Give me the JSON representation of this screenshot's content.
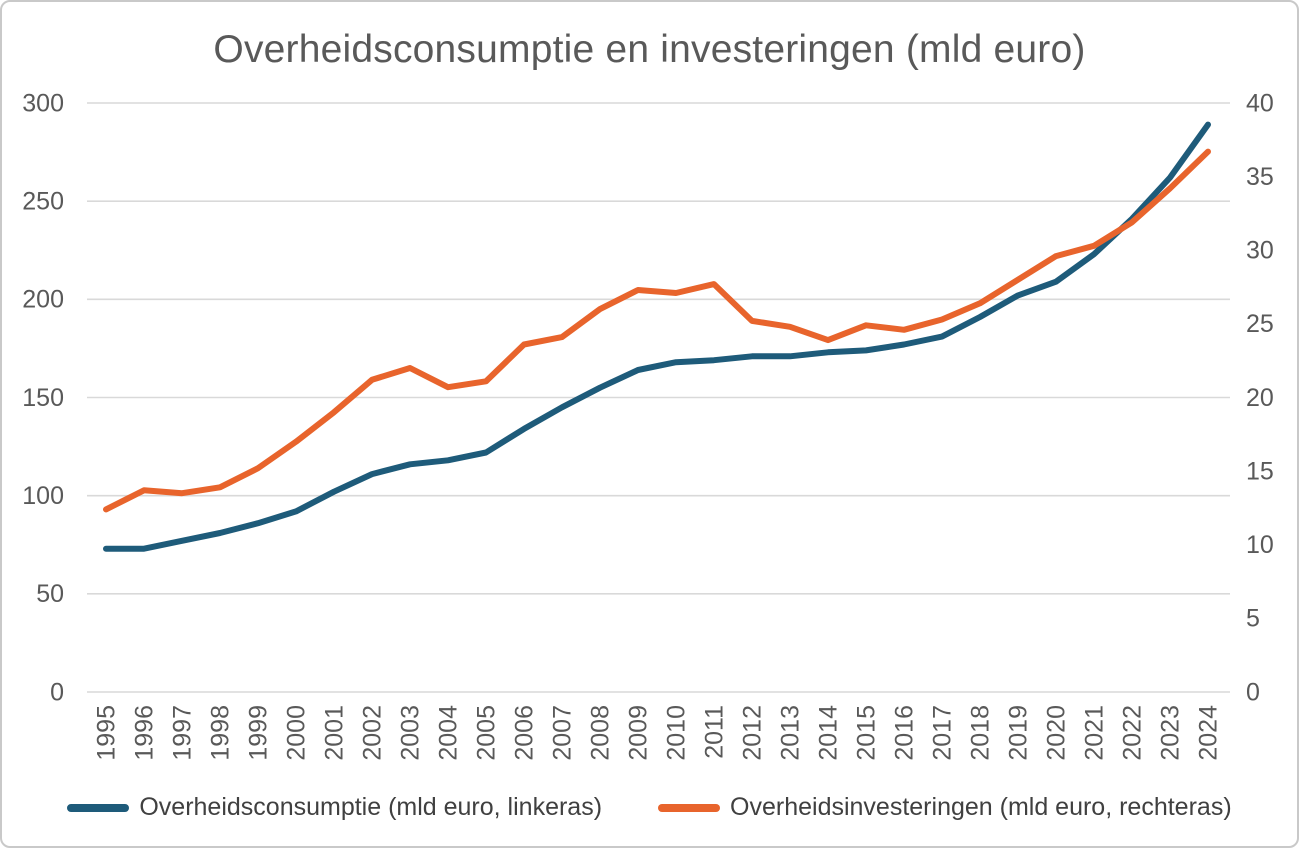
{
  "page": {
    "title": "Overheidsconsumptie en investeringen (mld euro)"
  },
  "chart_data": {
    "type": "line",
    "title": "Overheidsconsumptie en investeringen (mld euro)",
    "categories": [
      "1995",
      "1996",
      "1997",
      "1998",
      "1999",
      "2000",
      "2001",
      "2002",
      "2003",
      "2004",
      "2005",
      "2006",
      "2007",
      "2008",
      "2009",
      "2010",
      "2011",
      "2012",
      "2013",
      "2014",
      "2015",
      "2016",
      "2017",
      "2018",
      "2019",
      "2020",
      "2021",
      "2022",
      "2023",
      "2024"
    ],
    "series": [
      {
        "name": "Overheidsconsumptie (mld euro, linkeras)",
        "axis": "left",
        "color": "#1E5B7A",
        "values": [
          73,
          73,
          77,
          81,
          86,
          92,
          102,
          111,
          116,
          118,
          122,
          134,
          145,
          155,
          164,
          168,
          169,
          171,
          171,
          173,
          174,
          177,
          181,
          191,
          202,
          209,
          223,
          241,
          262,
          289
        ]
      },
      {
        "name": "Overheidsinvesteringen (mld euro, rechteras)",
        "axis": "right",
        "color": "#E8642C",
        "values": [
          12.4,
          13.7,
          13.5,
          13.9,
          15.2,
          17.0,
          19.0,
          21.2,
          22.0,
          20.7,
          21.1,
          23.6,
          24.1,
          26.0,
          27.3,
          27.1,
          27.7,
          25.2,
          24.8,
          23.9,
          24.9,
          24.6,
          25.3,
          26.4,
          28.0,
          29.6,
          30.3,
          31.9,
          34.2,
          36.7
        ]
      }
    ],
    "left_axis": {
      "min": 0,
      "max": 300,
      "step": 50,
      "tick_labels": [
        "0",
        "50",
        "100",
        "150",
        "200",
        "250",
        "300"
      ]
    },
    "right_axis": {
      "min": 0,
      "max": 40,
      "step": 5,
      "tick_labels": [
        "0",
        "5",
        "10",
        "15",
        "20",
        "25",
        "30",
        "35",
        "40"
      ]
    },
    "grid": true,
    "legend_position": "bottom",
    "x_tick_rotation": -90
  },
  "style": {
    "grid_color": "#D9D9D9",
    "axis_text_color": "#595959",
    "title_color": "#595959",
    "legend_text_color": "#404040",
    "background": "#FFFFFF",
    "border_color": "#C9C9C9",
    "line_width": 6
  }
}
